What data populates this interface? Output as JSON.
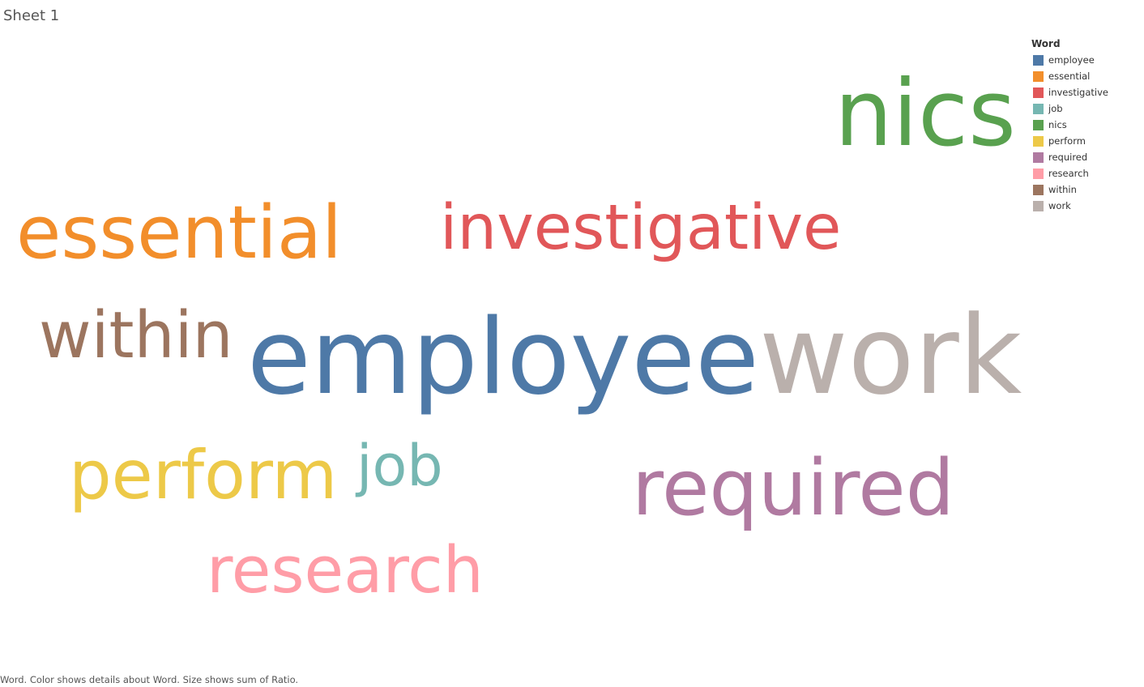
{
  "sheet": {
    "title": "Sheet 1"
  },
  "legend": {
    "title": "Word"
  },
  "caption": "Word.  Color shows details about Word.  Size shows sum of Ratio.",
  "chart_data": {
    "type": "word_cloud",
    "size_measure": "sum of Ratio",
    "color_dimension": "Word",
    "legend_position": "top-right",
    "words": [
      {
        "word": "employee",
        "size": 1.0,
        "color": "#4E79A7"
      },
      {
        "word": "essential",
        "size": 0.7,
        "color": "#F28E2B"
      },
      {
        "word": "investigative",
        "size": 0.6,
        "color": "#E15759"
      },
      {
        "word": "job",
        "size": 0.55,
        "color": "#76B7B2"
      },
      {
        "word": "nics",
        "size": 0.88,
        "color": "#59A14F"
      },
      {
        "word": "perform",
        "size": 0.65,
        "color": "#EDC948"
      },
      {
        "word": "required",
        "size": 0.74,
        "color": "#B07AA1"
      },
      {
        "word": "research",
        "size": 0.62,
        "color": "#FF9DA7"
      },
      {
        "word": "within",
        "size": 0.62,
        "color": "#9C755F"
      },
      {
        "word": "work",
        "size": 1.05,
        "color": "#BAB0AC"
      }
    ]
  }
}
